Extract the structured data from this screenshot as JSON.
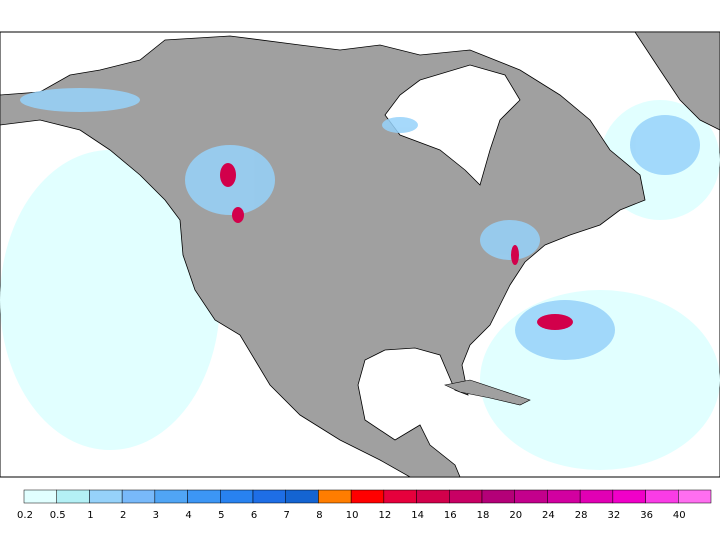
{
  "legend": {
    "levels": [
      0.2,
      0.5,
      1,
      2,
      3,
      4,
      5,
      6,
      7,
      8,
      10,
      12,
      14,
      16,
      18,
      20,
      24,
      28,
      32,
      36,
      40
    ],
    "colors": [
      "#e1ffff",
      "#b4f0f5",
      "#96d2fa",
      "#78b9fa",
      "#50a5f5",
      "#3c96f5",
      "#2882f0",
      "#1e6ee6",
      "#1464d2",
      "#ff7d00",
      "#ff0000",
      "#e6003c",
      "#d2004b",
      "#c80064",
      "#b40078",
      "#c3008c",
      "#d200a0",
      "#e100b4",
      "#f000c8",
      "#fa3ce6",
      "#ff6ef0"
    ]
  }
}
